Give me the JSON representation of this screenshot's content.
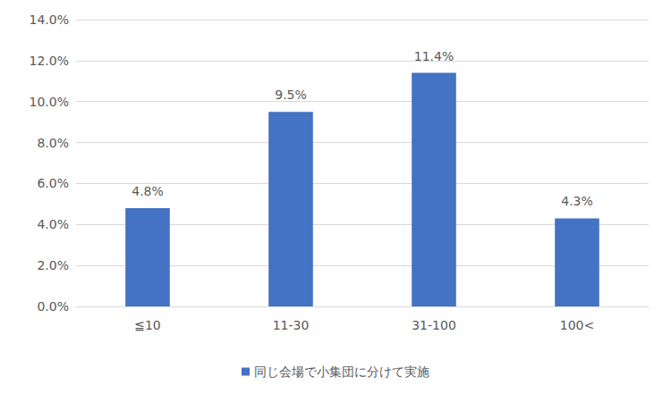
{
  "chart_data": {
    "type": "bar",
    "categories": [
      "≦10",
      "11-30",
      "31-100",
      "100<"
    ],
    "series": [
      {
        "name": "同じ会場で小集団に分けて実施",
        "color": "#4472c4",
        "values": [
          4.8,
          9.5,
          11.4,
          4.3
        ],
        "value_labels": [
          "4.8%",
          "9.5%",
          "11.4%",
          "4.3%"
        ]
      }
    ],
    "ylim": [
      0,
      14
    ],
    "yticks": [
      {
        "value": 0,
        "label": "0.0%"
      },
      {
        "value": 2,
        "label": "2.0%"
      },
      {
        "value": 4,
        "label": "4.0%"
      },
      {
        "value": 6,
        "label": "6.0%"
      },
      {
        "value": 8,
        "label": "8.0%"
      },
      {
        "value": 10,
        "label": "10.0%"
      },
      {
        "value": 12,
        "label": "12.0%"
      },
      {
        "value": 14,
        "label": "14.0%"
      }
    ],
    "grid": true,
    "legend": "bottom",
    "data_labels": true
  }
}
